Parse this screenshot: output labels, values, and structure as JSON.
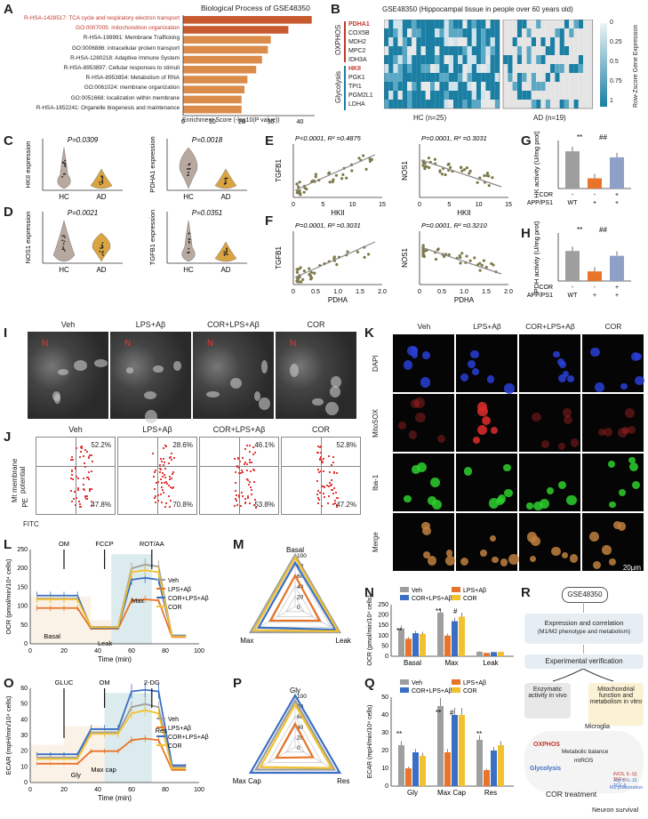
{
  "panels": {
    "A": "A",
    "B": "B",
    "C": "C",
    "D": "D",
    "E": "E",
    "F": "F",
    "G": "G",
    "H": "H",
    "I": "I",
    "J": "J",
    "K": "K",
    "L": "L",
    "M": "M",
    "N": "N",
    "O": "O",
    "P": "P",
    "Q": "Q",
    "R": "R"
  },
  "panelA": {
    "title": "Biological Process of GSE48350",
    "xlabel": "Enrichment Score (-log10(P value))",
    "terms": [
      {
        "label": "R-HSA-1428517: TCA cycle and respiratory electron transport",
        "value": 44,
        "highlight": true
      },
      {
        "label": "GO:0007005: mitochondrion organization",
        "value": 36,
        "highlight": true
      },
      {
        "label": "R-HSA-199991: Membrane Trafficking",
        "value": 30,
        "highlight": false
      },
      {
        "label": "GO:0006886: intracellular protein transport",
        "value": 29,
        "highlight": false
      },
      {
        "label": "R-HSA-1280218: Adaptive Immune System",
        "value": 27,
        "highlight": false
      },
      {
        "label": "R-HSA-8953897: Cellular responses to stimuli",
        "value": 25,
        "highlight": false
      },
      {
        "label": "R-HSA-8953854: Metabolism of RNA",
        "value": 22,
        "highlight": false
      },
      {
        "label": "GO:0061024: membrane organization",
        "value": 21,
        "highlight": false
      },
      {
        "label": "GO:0051668: localization within membrane",
        "value": 20,
        "highlight": false
      },
      {
        "label": "R-HSA-1852241: Organelle biogenesis and maintenance",
        "value": 20,
        "highlight": false
      }
    ],
    "ticks": [
      "0",
      "10",
      "20",
      "30",
      "40"
    ]
  },
  "panelB": {
    "title": "GSE48350 (Hippocampal tissue in people over 60 years old)",
    "oxphos_label": "OXPHOS",
    "glycolysis_label": "Glycolysis",
    "genes": [
      "PDHA1",
      "COX5B",
      "MDH2",
      "MPC2",
      "IDH3A",
      "HKII",
      "PGK1",
      "TPI1",
      "PGM2L1",
      "LDHA"
    ],
    "bold_genes": [
      "PDHA1",
      "HKII"
    ],
    "group_hc": "HC (n=25)",
    "group_ad": "AD (n=19)",
    "legend_title": "Row-Zscore Gene Expression",
    "legend_ticks": [
      "0",
      "0.25",
      "0.5",
      "0.75",
      "1"
    ]
  },
  "panelC": [
    {
      "ylabel": "HKII expression",
      "p": "P=0.0309",
      "groups": [
        "HC",
        "AD"
      ]
    },
    {
      "ylabel": "PDHA1 expression",
      "p": "P=0.0018",
      "groups": [
        "HC",
        "AD"
      ]
    }
  ],
  "panelD": [
    {
      "ylabel": "NOS1 expression",
      "p": "P=0.0021",
      "groups": [
        "HC",
        "AD"
      ]
    },
    {
      "ylabel": "TGFB1 expression",
      "p": "P=0.0351",
      "groups": [
        "HC",
        "AD"
      ]
    }
  ],
  "panelE": [
    {
      "stat": "P<0.0001, R² =0.4875",
      "ylabel": "TGFB1",
      "xlabel": "HKII",
      "xticks": [
        "0",
        "5",
        "10",
        "15"
      ]
    },
    {
      "stat": "P=0.0001, R² =0.3031",
      "ylabel": "NOS1",
      "xlabel": "HKII",
      "xticks": [
        "0",
        "5",
        "10",
        "15"
      ]
    }
  ],
  "panelF": [
    {
      "stat": "P=0.0001, R² =0.3031",
      "ylabel": "TGFB1",
      "xlabel": "PDHA",
      "xticks": [
        "0",
        "0.5",
        "1.0",
        "1.5",
        "2.0"
      ]
    },
    {
      "stat": "P=0.0001, R² =0.3210",
      "ylabel": "NOS1",
      "xlabel": "PDHA",
      "xticks": [
        "0",
        "0.5",
        "1.0",
        "1.5",
        "2.0"
      ]
    }
  ],
  "panelG": {
    "ylabel": "HK activity (U/mg prot)",
    "sig1": "**",
    "sig2": "##",
    "cor_row": [
      "COR",
      "-",
      "-",
      "+"
    ],
    "app_row": [
      "APP/PS1",
      "WT",
      "+",
      "+"
    ],
    "values": [
      62,
      17,
      52
    ],
    "ylim": [
      0,
      80
    ]
  },
  "panelH": {
    "ylabel": "PDH activity (U/mg prot)",
    "sig1": "**",
    "sig2": "##",
    "cor_row": [
      "COR",
      "-",
      "-",
      "+"
    ],
    "app_row": [
      "APP/PS1",
      "WT",
      "+",
      "+"
    ],
    "values": [
      12.5,
      4,
      10.5
    ],
    "ylim": [
      0,
      20
    ]
  },
  "panelI": {
    "conds": [
      "Veh",
      "LPS+Aβ",
      "COR+LPS+Aβ",
      "COR"
    ],
    "n_label": "N"
  },
  "panelJ": {
    "conds": [
      "Veh",
      "LPS+Aβ",
      "COR+LPS+Aβ",
      "COR"
    ],
    "upper": [
      "52.2%",
      "28.6%",
      "46.1%",
      "52.8%"
    ],
    "lower": [
      "47.8%",
      "70.8%",
      "53.8%",
      "47.2%"
    ],
    "ylabel": "Mt membrane potential",
    "y_channel": "PE",
    "x_channel": "FITC"
  },
  "panelK": {
    "conds": [
      "Veh",
      "LPS+Aβ",
      "COR+LPS+Aβ",
      "COR"
    ],
    "rows": [
      "DAPI",
      "MitoSOX",
      "Iba-1",
      "Merge"
    ],
    "scale": "20μm"
  },
  "panelL": {
    "ylabel": "OCR (pmol/min/10⁴ cells)",
    "xlabel": "Time (min)",
    "injections": [
      "OM",
      "FCCP",
      "ROT/AA"
    ],
    "regions": [
      "Basal",
      "Leak",
      "Max"
    ],
    "legend": [
      "Veh",
      "LPS+Aβ",
      "COR+LPS+Aβ",
      "COR"
    ],
    "xticks": [
      "0",
      "20",
      "40",
      "60",
      "80",
      "100"
    ],
    "yticks": [
      "0",
      "50",
      "100",
      "150",
      "200",
      "250"
    ]
  },
  "panelM": {
    "axes": [
      "Basal",
      "Max",
      "Leak"
    ],
    "rings": [
      "0",
      "20",
      "40",
      "60",
      "80",
      "100"
    ]
  },
  "panelN": {
    "ylabel": "OCR (pmol/min/10⁴ cells)",
    "groups": [
      "Basal",
      "Max",
      "Leak"
    ],
    "legend": [
      "Veh",
      "LPS+Aβ",
      "COR+LPS+Aβ",
      "COR"
    ],
    "sig": [
      "**",
      "**",
      "#"
    ],
    "yticks": [
      "0",
      "50",
      "100",
      "150",
      "200",
      "250"
    ]
  },
  "panelO": {
    "ylabel": "ECAR (mpH/min/10⁴ cells)",
    "xlabel": "Time (min)",
    "injections": [
      "GLUC",
      "OM",
      "2-DG"
    ],
    "regions": [
      "Gly",
      "Max cap",
      "Res"
    ],
    "legend": [
      "Veh",
      "LPS+Aβ",
      "COR+LPS+Aβ",
      "COR"
    ],
    "xticks": [
      "0",
      "20",
      "40",
      "60",
      "80",
      "100"
    ],
    "yticks": [
      "0",
      "10",
      "20",
      "30",
      "40",
      "50",
      "60"
    ]
  },
  "panelP": {
    "axes": [
      "Gly",
      "Max Cap",
      "Res"
    ],
    "rings": [
      "0",
      "20",
      "40",
      "60",
      "80",
      "100"
    ]
  },
  "panelQ": {
    "ylabel": "ECAR (mpH/min/10⁴ cells)",
    "groups": [
      "Gly",
      "Max Cap",
      "Res"
    ],
    "legend": [
      "Veh",
      "LPS+Aβ",
      "COR+LPS+Aβ",
      "COR"
    ],
    "sig": [
      "**",
      "**",
      "#",
      "**"
    ],
    "yticks": [
      "0",
      "10",
      "20",
      "30",
      "40",
      "50"
    ]
  },
  "panelR": {
    "top": "GSE48350",
    "box1a": "Expression and correlation",
    "box1b": "(M1/M2 phenotype and metabolism)",
    "box2": "Experimental verification",
    "box3": "Enzymatic activity in vivo",
    "box4": "Mitochondrial function and metabolism in vitro",
    "microglia": "Microglia",
    "oxphos": "OXPHOS",
    "glycolysis": "Glycolysis",
    "balance": "Metabolic balance",
    "mtros": "mtROS",
    "cyt1": "iNOS, IL-1β, TNF-α",
    "cyt2": "Arg-1, IL-10, TGF-β",
    "m2": "M2 polarization",
    "treatment": "COR treatment",
    "survival": "Neuron survival"
  },
  "colors": {
    "veh": "#9e9e9e",
    "lps": "#e8742a",
    "corlps": "#3a6fc4",
    "cor": "#f2c12e",
    "barA": "#d9773a",
    "heat": "#1b7fa3",
    "violin_hc": "#b8a9a0",
    "violin_ad": "#d9a441",
    "scatter": "#7d7a4a",
    "red_text": "#c0392b"
  }
}
